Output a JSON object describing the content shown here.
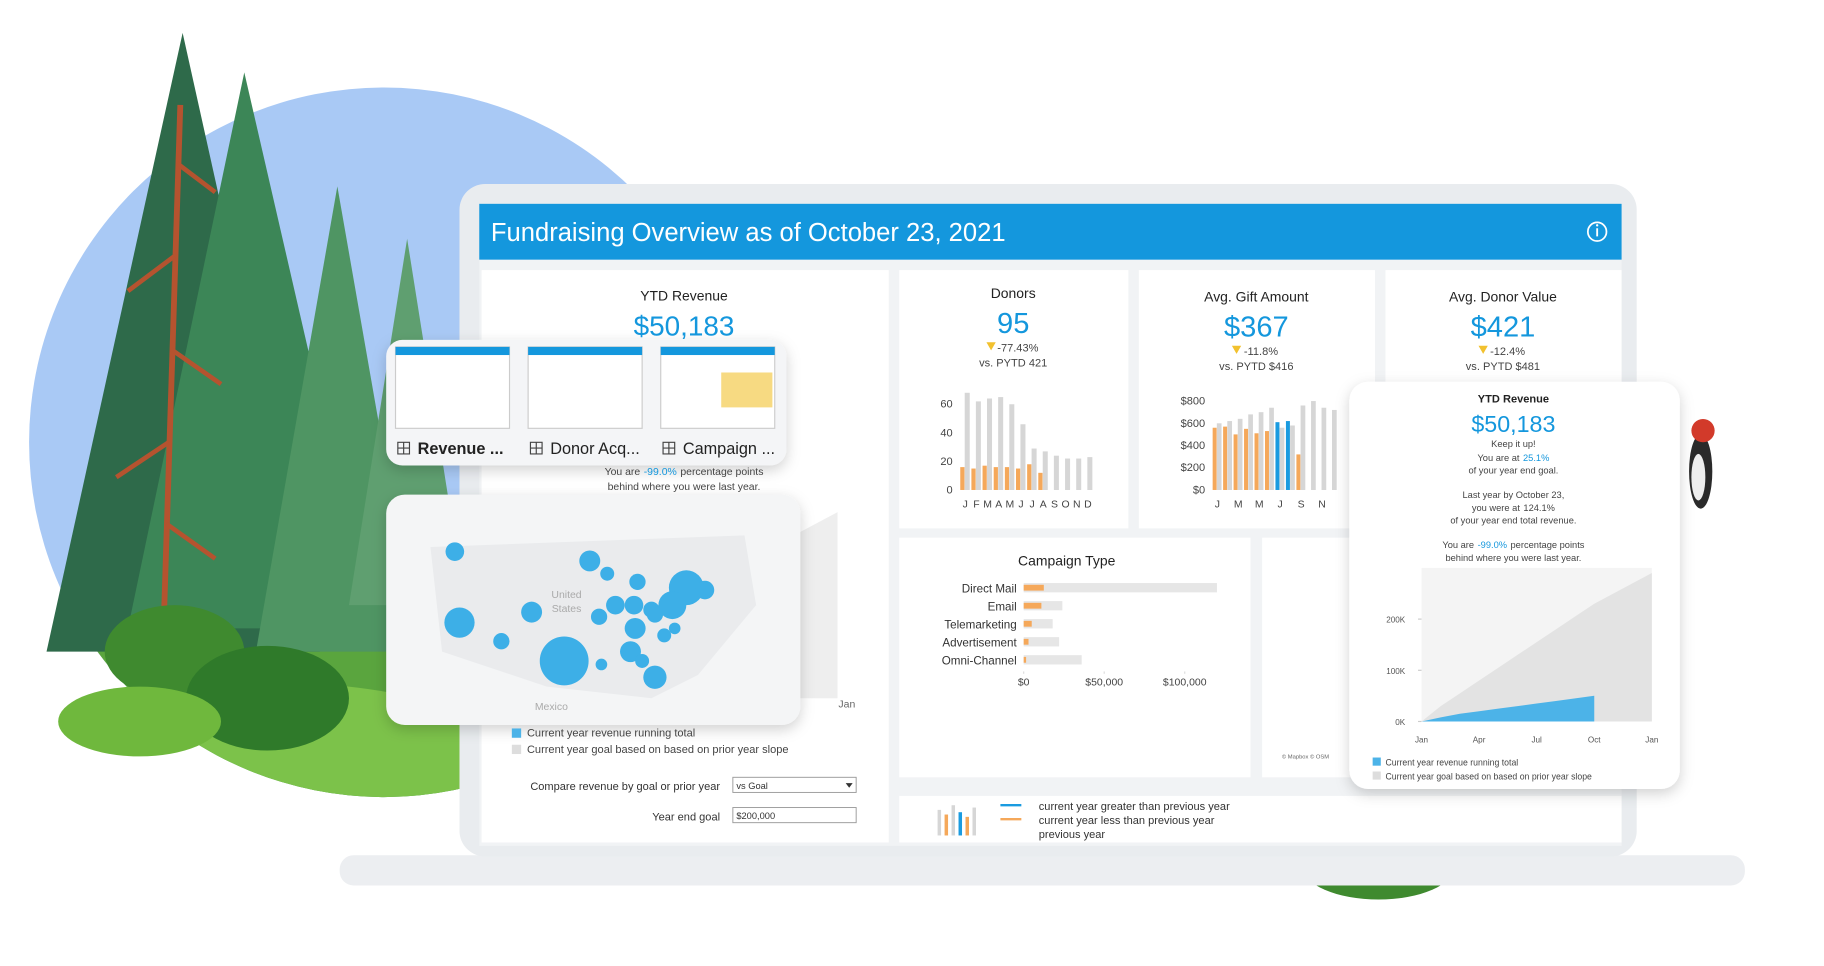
{
  "header": {
    "title": "Fundraising Overview as of October 23, 2021"
  },
  "tabs": [
    {
      "label": "Revenue ..."
    },
    {
      "label": "Donor Acq..."
    },
    {
      "label": "Campaign ..."
    }
  ],
  "ytd_revenue": {
    "title": "YTD Revenue",
    "value": "$50,183",
    "behind": [
      "You are",
      "-99.0%",
      "percentage points"
    ],
    "behind2": "behind where you were last year.",
    "axis_end": "Jan",
    "legend": [
      {
        "label": "Current year revenue running total",
        "color": "#4cb3e8"
      },
      {
        "label": "Current year goal based on based on prior year slope",
        "color": "#dddddd"
      }
    ],
    "compare_label": "Compare revenue  by goal or prior year",
    "compare_value": "vs Goal",
    "goal_label": "Year end goal",
    "goal_value": "$200,000"
  },
  "map": {
    "labels": [
      "United",
      "States",
      "Mexico"
    ],
    "credit": "© Mapbox © OSM"
  },
  "kpis": [
    {
      "title": "Donors",
      "value": "95",
      "change": "-77.43%",
      "compare": "vs. PYTD 421"
    },
    {
      "title": "Avg. Gift Amount",
      "value": "$367",
      "change": "-11.8%",
      "compare": "vs. PYTD $416"
    },
    {
      "title": "Avg. Donor Value",
      "value": "$421",
      "change": "-12.4%",
      "compare": "vs. PYTD $481"
    }
  ],
  "donors_chart": {
    "type": "bar",
    "categories": [
      "J",
      "F",
      "M",
      "A",
      "M",
      "J",
      "J",
      "A",
      "S",
      "O",
      "N",
      "D"
    ],
    "series": [
      {
        "color": "#f5a85a",
        "values": [
          16,
          15,
          17,
          16,
          16,
          15,
          18,
          12,
          null,
          null,
          null,
          null
        ]
      },
      {
        "color": "#d6d6d6",
        "values": [
          68,
          62,
          64,
          65,
          60,
          46,
          29,
          27,
          24,
          22,
          22,
          23
        ]
      }
    ],
    "above_color": "#1a9be0",
    "ylim": [
      0,
      70
    ],
    "yticks": [
      0,
      20,
      40,
      60
    ]
  },
  "gift_chart": {
    "type": "bar",
    "categories": [
      "J",
      null,
      "M",
      null,
      "M",
      null,
      "J",
      null,
      "S",
      null,
      "N",
      null
    ],
    "series": [
      {
        "color": "#f5a85a",
        "values": [
          560,
          570,
          500,
          550,
          510,
          530,
          610,
          620,
          320,
          null,
          null,
          null
        ]
      },
      {
        "color": "#d6d6d6",
        "values": [
          600,
          620,
          640,
          680,
          700,
          740,
          560,
          580,
          760,
          800,
          740,
          720
        ]
      }
    ],
    "above_color": "#1a9be0",
    "ylim": [
      0,
      900
    ],
    "yticks": [
      {
        "value": 0,
        "label": "$0"
      },
      {
        "value": 200,
        "label": "$200"
      },
      {
        "value": 400,
        "label": "$400"
      },
      {
        "value": 600,
        "label": "$600"
      },
      {
        "value": 800,
        "label": "$800"
      }
    ]
  },
  "campaign_chart": {
    "type": "hbar",
    "title": "Campaign Type",
    "categories": [
      "Direct Mail",
      "Email",
      "Telemarketing",
      "Advertisement",
      "Omni-Channel"
    ],
    "series": [
      {
        "color": "#e6e6e6",
        "values": [
          120000,
          24000,
          18000,
          22000,
          36000
        ]
      },
      {
        "color": "#f5a85a",
        "values": [
          12500,
          11000,
          5000,
          3000,
          1500
        ]
      }
    ],
    "xlim": [
      0,
      130000
    ],
    "xticks": [
      {
        "value": 0,
        "label": "$0"
      },
      {
        "value": 50000,
        "label": "$50,000"
      },
      {
        "value": 100000,
        "label": "$100,000"
      }
    ]
  },
  "bottom_legend": [
    {
      "label": "current year greater than previous year",
      "color": "#1a9be0"
    },
    {
      "label": "current year less than previous year",
      "color": "#f5a85a"
    },
    {
      "label": "previous year",
      "color": "#d6d6d6"
    }
  ],
  "float_card": {
    "title": "YTD Revenue",
    "value": "$50,183",
    "keep": "Keep it up!",
    "goal": [
      "You are at",
      "25.1%"
    ],
    "goal2": "of your year end goal.",
    "last1": "Last year by October 23,",
    "last2": [
      "you were at",
      "124.1%"
    ],
    "last3": "of your year end total revenue.",
    "behind": [
      "You are",
      "-99.0%",
      "percentage points"
    ],
    "behind2": "behind where you were last year.",
    "chart": {
      "type": "area",
      "categories": [
        "Jan",
        null,
        null,
        "Apr",
        null,
        null,
        "Jul",
        null,
        null,
        "Oct",
        null,
        null,
        "Jan"
      ],
      "series": [
        {
          "color": "#e3e3e3",
          "values": [
            0,
            30000,
            55000,
            80000,
            105000,
            130000,
            155000,
            180000,
            205000,
            230000,
            250000,
            270000,
            290000
          ]
        },
        {
          "color": "#4cb3e8",
          "values": [
            0,
            8000,
            15000,
            20000,
            25000,
            30000,
            35000,
            40000,
            45000,
            50183,
            null,
            null,
            null
          ]
        }
      ],
      "ylim": [
        0,
        300000
      ],
      "yticks": [
        {
          "value": 0,
          "label": "0K"
        },
        {
          "value": 100000,
          "label": "100K"
        },
        {
          "value": 200000,
          "label": "200K"
        }
      ]
    },
    "legend": [
      {
        "label": "Current year revenue running total",
        "color": "#4cb3e8"
      },
      {
        "label": "Current year goal based on based on prior year slope",
        "color": "#dddddd"
      }
    ]
  }
}
